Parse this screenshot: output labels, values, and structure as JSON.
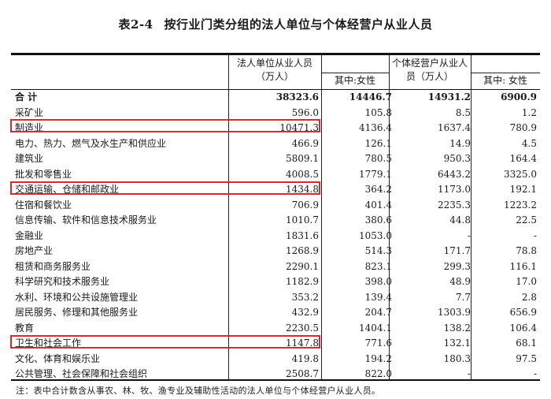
{
  "title": {
    "number": "表2-4",
    "text": "按行业门类分组的法人单位与个体经营户从业人员"
  },
  "columns": {
    "legal_entity": "法人单位从业人员（万人）",
    "legal_entity_line1": "法人单位从业人员",
    "legal_entity_line2": "（万人）",
    "legal_female": "其中:女性",
    "individual_line1": "个体经营户从业人",
    "individual_line2": "员（万人）",
    "individual_female": "其中:  女性"
  },
  "rows": [
    {
      "name": "合  计",
      "v1": "38323.6",
      "v2": "14446.7",
      "v3": "14931.2",
      "v4": "6900.9"
    },
    {
      "name": "采矿业",
      "v1": "596.0",
      "v2": "105.8",
      "v3": "8.5",
      "v4": "1.2"
    },
    {
      "name": "制造业",
      "v1": "10471.3",
      "v2": "4136.4",
      "v3": "1637.4",
      "v4": "780.9"
    },
    {
      "name": "电力、热力、燃气及水生产和供应业",
      "v1": "466.9",
      "v2": "126.1",
      "v3": "14.9",
      "v4": "4.5"
    },
    {
      "name": "建筑业",
      "v1": "5809.1",
      "v2": "780.5",
      "v3": "950.3",
      "v4": "164.4"
    },
    {
      "name": "批发和零售业",
      "v1": "4008.5",
      "v2": "1779.1",
      "v3": "6443.2",
      "v4": "3325.0"
    },
    {
      "name": "交通运输、仓储和邮政业",
      "v1": "1434.8",
      "v2": "364.2",
      "v3": "1173.0",
      "v4": "192.1"
    },
    {
      "name": "住宿和餐饮业",
      "v1": "706.9",
      "v2": "401.4",
      "v3": "2235.3",
      "v4": "1223.2"
    },
    {
      "name": "信息传输、软件和信息技术服务业",
      "v1": "1010.7",
      "v2": "380.6",
      "v3": "44.8",
      "v4": "22.5"
    },
    {
      "name": "金融业",
      "v1": "1831.6",
      "v2": "1053.0",
      "v3": "-",
      "v4": "-"
    },
    {
      "name": "房地产业",
      "v1": "1268.9",
      "v2": "514.3",
      "v3": "171.7",
      "v4": "78.8"
    },
    {
      "name": "租赁和商务服务业",
      "v1": "2290.1",
      "v2": "823.1",
      "v3": "299.3",
      "v4": "116.1"
    },
    {
      "name": "科学研究和技术服务业",
      "v1": "1182.9",
      "v2": "398.0",
      "v3": "48.9",
      "v4": "17.0"
    },
    {
      "name": "水利、环境和公共设施管理业",
      "v1": "353.2",
      "v2": "139.4",
      "v3": "7.7",
      "v4": "2.8"
    },
    {
      "name": "居民服务、修理和其他服务业",
      "v1": "432.9",
      "v2": "204.7",
      "v3": "1303.9",
      "v4": "656.9"
    },
    {
      "name": "教育",
      "v1": "2230.5",
      "v2": "1404.1",
      "v3": "138.2",
      "v4": "106.4"
    },
    {
      "name": "卫生和社会工作",
      "v1": "1147.8",
      "v2": "771.6",
      "v3": "132.1",
      "v4": "68.1"
    },
    {
      "name": "文化、体育和娱乐业",
      "v1": "419.8",
      "v2": "194.2",
      "v3": "180.3",
      "v4": "97.5"
    },
    {
      "name": "公共管理、社会保障和社会组织",
      "v1": "2508.7",
      "v2": "822.0",
      "v3": "-",
      "v4": "-"
    }
  ],
  "highlighted_rows": [
    "制造业",
    "交通运输、仓储和邮政业",
    "卫生和社会工作"
  ],
  "highlight_color": "#d9282f",
  "note": "注：表中合计数含从事农、林、牧、渔专业及辅助性活动的法人单位与个体经营户从业人员。"
}
